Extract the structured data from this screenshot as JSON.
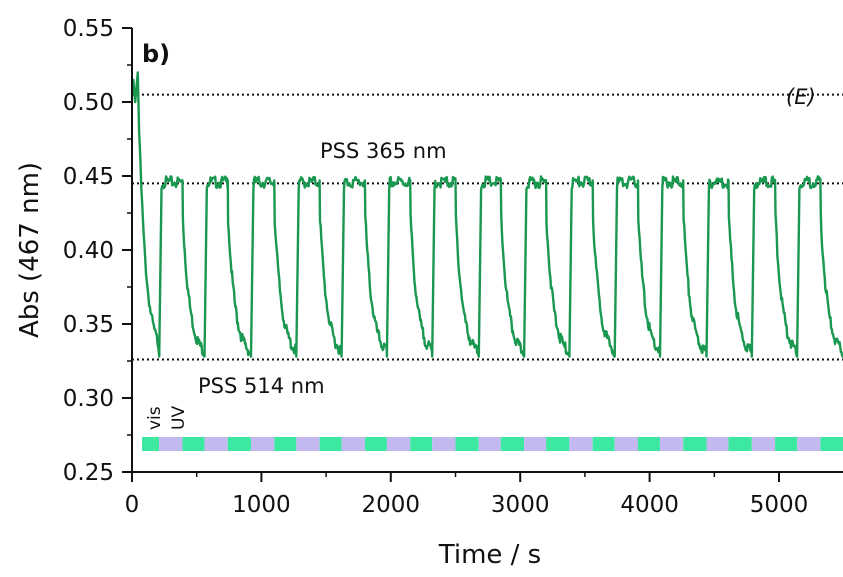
{
  "chart_data": {
    "type": "line",
    "panel_label": "b)",
    "corner_label": "(E)",
    "xlabel": "Time / s",
    "ylabel": "Abs (467 nm)",
    "xlim": [
      0,
      5500
    ],
    "ylim": [
      0.25,
      0.55
    ],
    "xticks": [
      0,
      1000,
      2000,
      3000,
      4000,
      5000
    ],
    "yticks": [
      "0.25",
      "0.30",
      "0.35",
      "0.40",
      "0.45",
      "0.50",
      "0.55"
    ],
    "series_color": "#1a9850",
    "reference_lines": [
      {
        "y": 0.505
      },
      {
        "y": 0.445,
        "label": "PSS 365 nm"
      },
      {
        "y": 0.326,
        "label": "PSS 514 nm"
      }
    ],
    "cycles": {
      "initial_level": 0.515,
      "high_level": 0.447,
      "low_level": 0.327,
      "uv_switch_times": [
        210,
        560,
        920,
        1270,
        1620,
        1970,
        2320,
        2680,
        3030,
        3380,
        3730,
        4080,
        4440,
        4790,
        5140
      ],
      "vis_switch_times": [
        390,
        740,
        1100,
        1450,
        1800,
        2150,
        2500,
        2850,
        3200,
        3560,
        3910,
        4260,
        4610,
        4970,
        5320
      ]
    },
    "irradiation_bar": {
      "labels": [
        "vis",
        "UV"
      ],
      "colors": {
        "vis": "#3de8a0",
        "UV": "#c3b8f0"
      }
    }
  }
}
